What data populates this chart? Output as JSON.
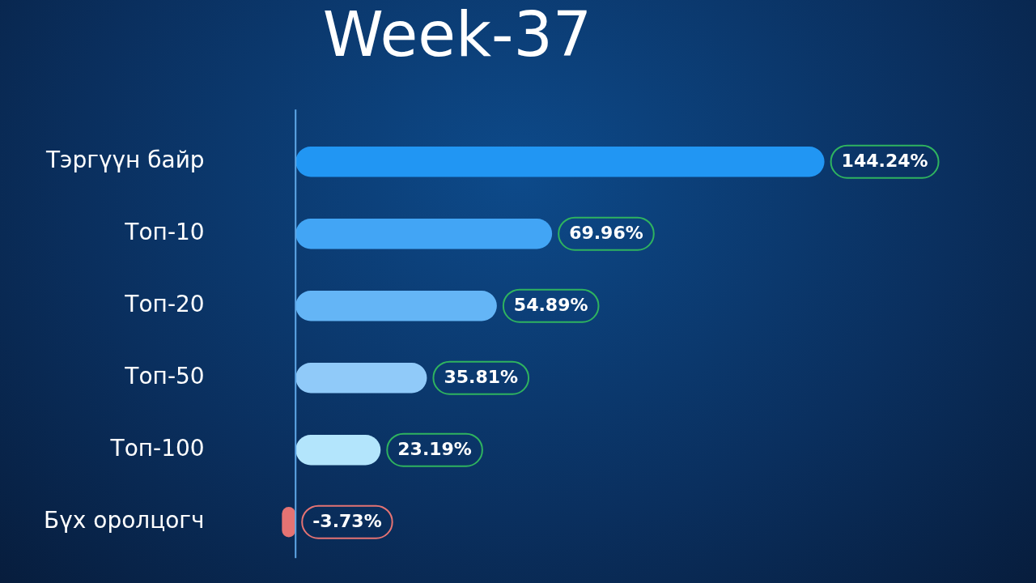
{
  "chart_data": {
    "type": "bar",
    "title": "Week-37",
    "orientation": "horizontal",
    "categories": [
      "Тэргүүн байр",
      "Топ-10",
      "Топ-20",
      "Топ-50",
      "Топ-100",
      "Бүх оролцогч"
    ],
    "values": [
      144.24,
      69.96,
      54.89,
      35.81,
      23.19,
      -3.73
    ],
    "value_labels": [
      "144.24%",
      "69.96%",
      "54.89%",
      "35.81%",
      "23.19%",
      "-3.73%"
    ],
    "colors": [
      "#2196f3",
      "#42a5f5",
      "#64b5f6",
      "#90caf9",
      "#b3e5fc",
      "#e57373"
    ],
    "ref_lines": [
      {
        "axis": "x",
        "value": 0,
        "color": "#5fa8e8"
      }
    ],
    "legend": false
  }
}
